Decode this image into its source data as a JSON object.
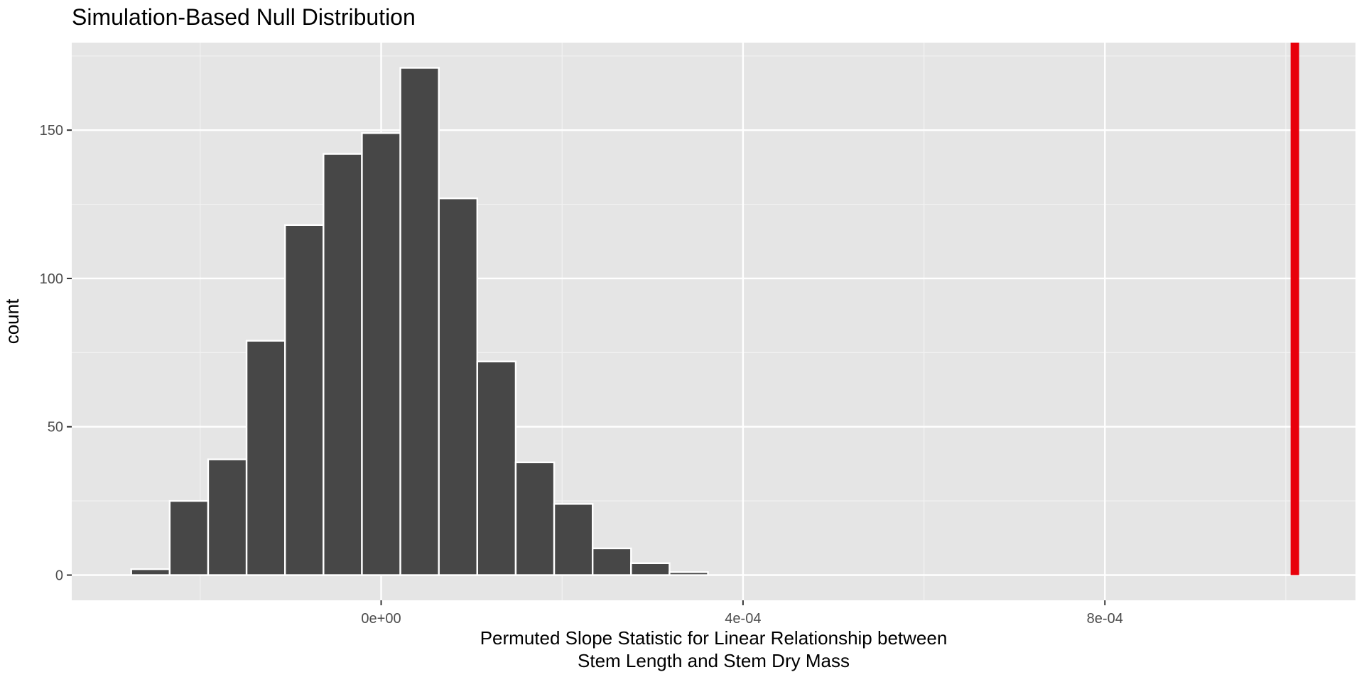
{
  "chart_data": {
    "type": "bar",
    "title": "Simulation-Based Null Distribution",
    "xlabel": [
      "Permuted Slope Statistic for Linear Relationship between",
      "Stem Length and Stem Dry Mass"
    ],
    "ylabel": "count",
    "bin_width": 4.25e-05,
    "bins": [
      {
        "x": -0.0002762,
        "count": 0
      },
      {
        "x": -0.000255,
        "count": 2
      },
      {
        "x": -0.0002125,
        "count": 25
      },
      {
        "x": -0.00017,
        "count": 39
      },
      {
        "x": -0.0001275,
        "count": 79
      },
      {
        "x": -8.5e-05,
        "count": 118
      },
      {
        "x": -4.25e-05,
        "count": 142
      },
      {
        "x": 0.0,
        "count": 149
      },
      {
        "x": 4.25e-05,
        "count": 171
      },
      {
        "x": 8.5e-05,
        "count": 127
      },
      {
        "x": 0.0001275,
        "count": 72
      },
      {
        "x": 0.00017,
        "count": 38
      },
      {
        "x": 0.0002125,
        "count": 24
      },
      {
        "x": 0.000255,
        "count": 9
      },
      {
        "x": 0.0002975,
        "count": 4
      },
      {
        "x": 0.00034,
        "count": 1
      }
    ],
    "observed_statistic": 0.00101,
    "observed_line_color": "#e8000b",
    "bar_fill": "#474747",
    "bar_outline": "#ffffff",
    "xlim": [
      -0.000342,
      0.001077
    ],
    "ylim": [
      -8.5,
      179.5
    ],
    "x_ticks": [
      {
        "value": 0,
        "label": "0e+00"
      },
      {
        "value": 0.0004,
        "label": "4e-04"
      },
      {
        "value": 0.0008,
        "label": "8e-04"
      }
    ],
    "x_minor_ticks": [
      -0.0002,
      0.0002,
      0.0006,
      0.001
    ],
    "y_ticks": [
      {
        "value": 0,
        "label": "0"
      },
      {
        "value": 50,
        "label": "50"
      },
      {
        "value": 100,
        "label": "100"
      },
      {
        "value": 150,
        "label": "150"
      }
    ],
    "y_minor_ticks": [
      25,
      75,
      125,
      175
    ],
    "grid": true,
    "legend": "none"
  }
}
